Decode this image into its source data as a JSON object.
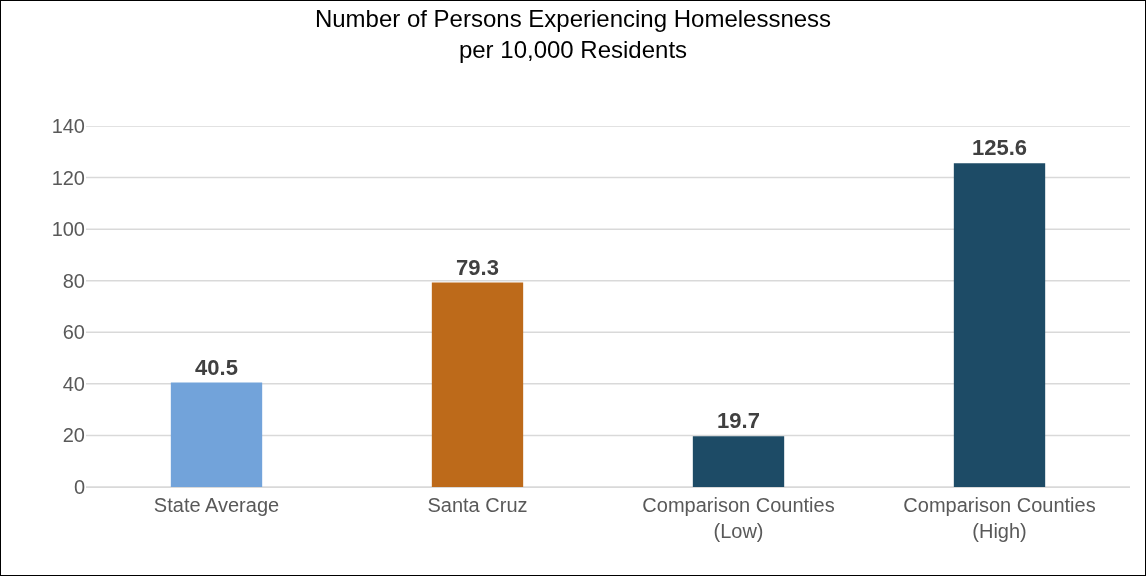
{
  "chart_data": {
    "type": "bar",
    "title": "Number of Persons Experiencing Homelessness\nper 10,000 Residents",
    "categories": [
      "State Average",
      "Santa Cruz",
      "Comparison Counties\n(Low)",
      "Comparison Counties\n(High)"
    ],
    "values": [
      40.5,
      79.3,
      19.7,
      125.6
    ],
    "colors": [
      "#72a3da",
      "#bd6a1a",
      "#1d4b66",
      "#1d4b66"
    ],
    "ylim": [
      0,
      140
    ],
    "yticks": [
      0,
      20,
      40,
      60,
      80,
      100,
      120,
      140
    ],
    "grid": "y",
    "data_labels": true
  }
}
